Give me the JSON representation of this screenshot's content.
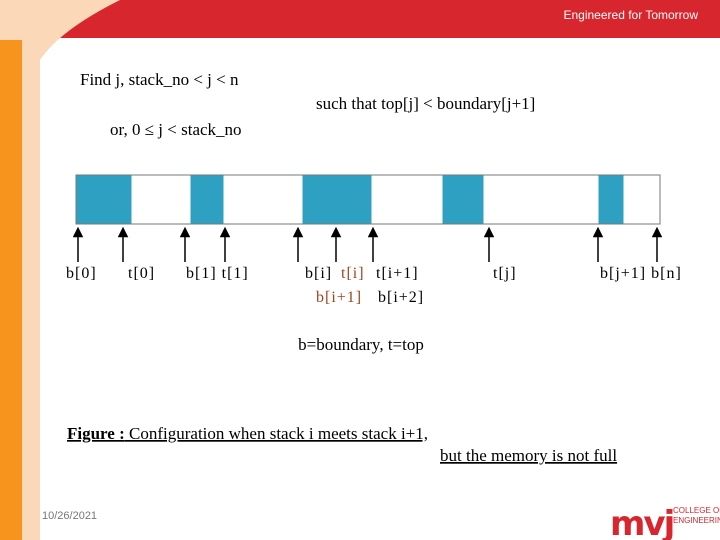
{
  "header": {
    "tagline": "Engineered for Tomorrow"
  },
  "conditions": [
    "Find j, stack_no < j < n",
    "such that top[j] < boundary[j+1]",
    "or, 0 ≤ j < stack_no"
  ],
  "pointer_labels": [
    {
      "text": "b[0]",
      "color": "#000000"
    },
    {
      "text": "t[0]",
      "color": "#000000"
    },
    {
      "text": "b[1] t[1]",
      "color": "#000000"
    },
    {
      "text": "b[i]",
      "color": "#000000"
    },
    {
      "text": "t[i]",
      "color": "#a0441e"
    },
    {
      "text": "t[i+1]",
      "color": "#000000"
    },
    {
      "text": "b[i+1]",
      "color": "#a0441e"
    },
    {
      "text": "b[i+2]",
      "color": "#000000"
    },
    {
      "text": "t[j]",
      "color": "#000000"
    },
    {
      "text": "b[j+1] b[n]",
      "color": "#000000"
    }
  ],
  "legend": "b=boundary, t=top",
  "caption": {
    "label": "Figure :",
    "text": " Configuration when stack i meets stack i+1,",
    "continuation": "but the memory is not full"
  },
  "footer": {
    "date": "10/26/2021",
    "logo": "mvj",
    "college_line1": "COLLEGE OF",
    "college_line2": "ENGINEERING"
  }
}
